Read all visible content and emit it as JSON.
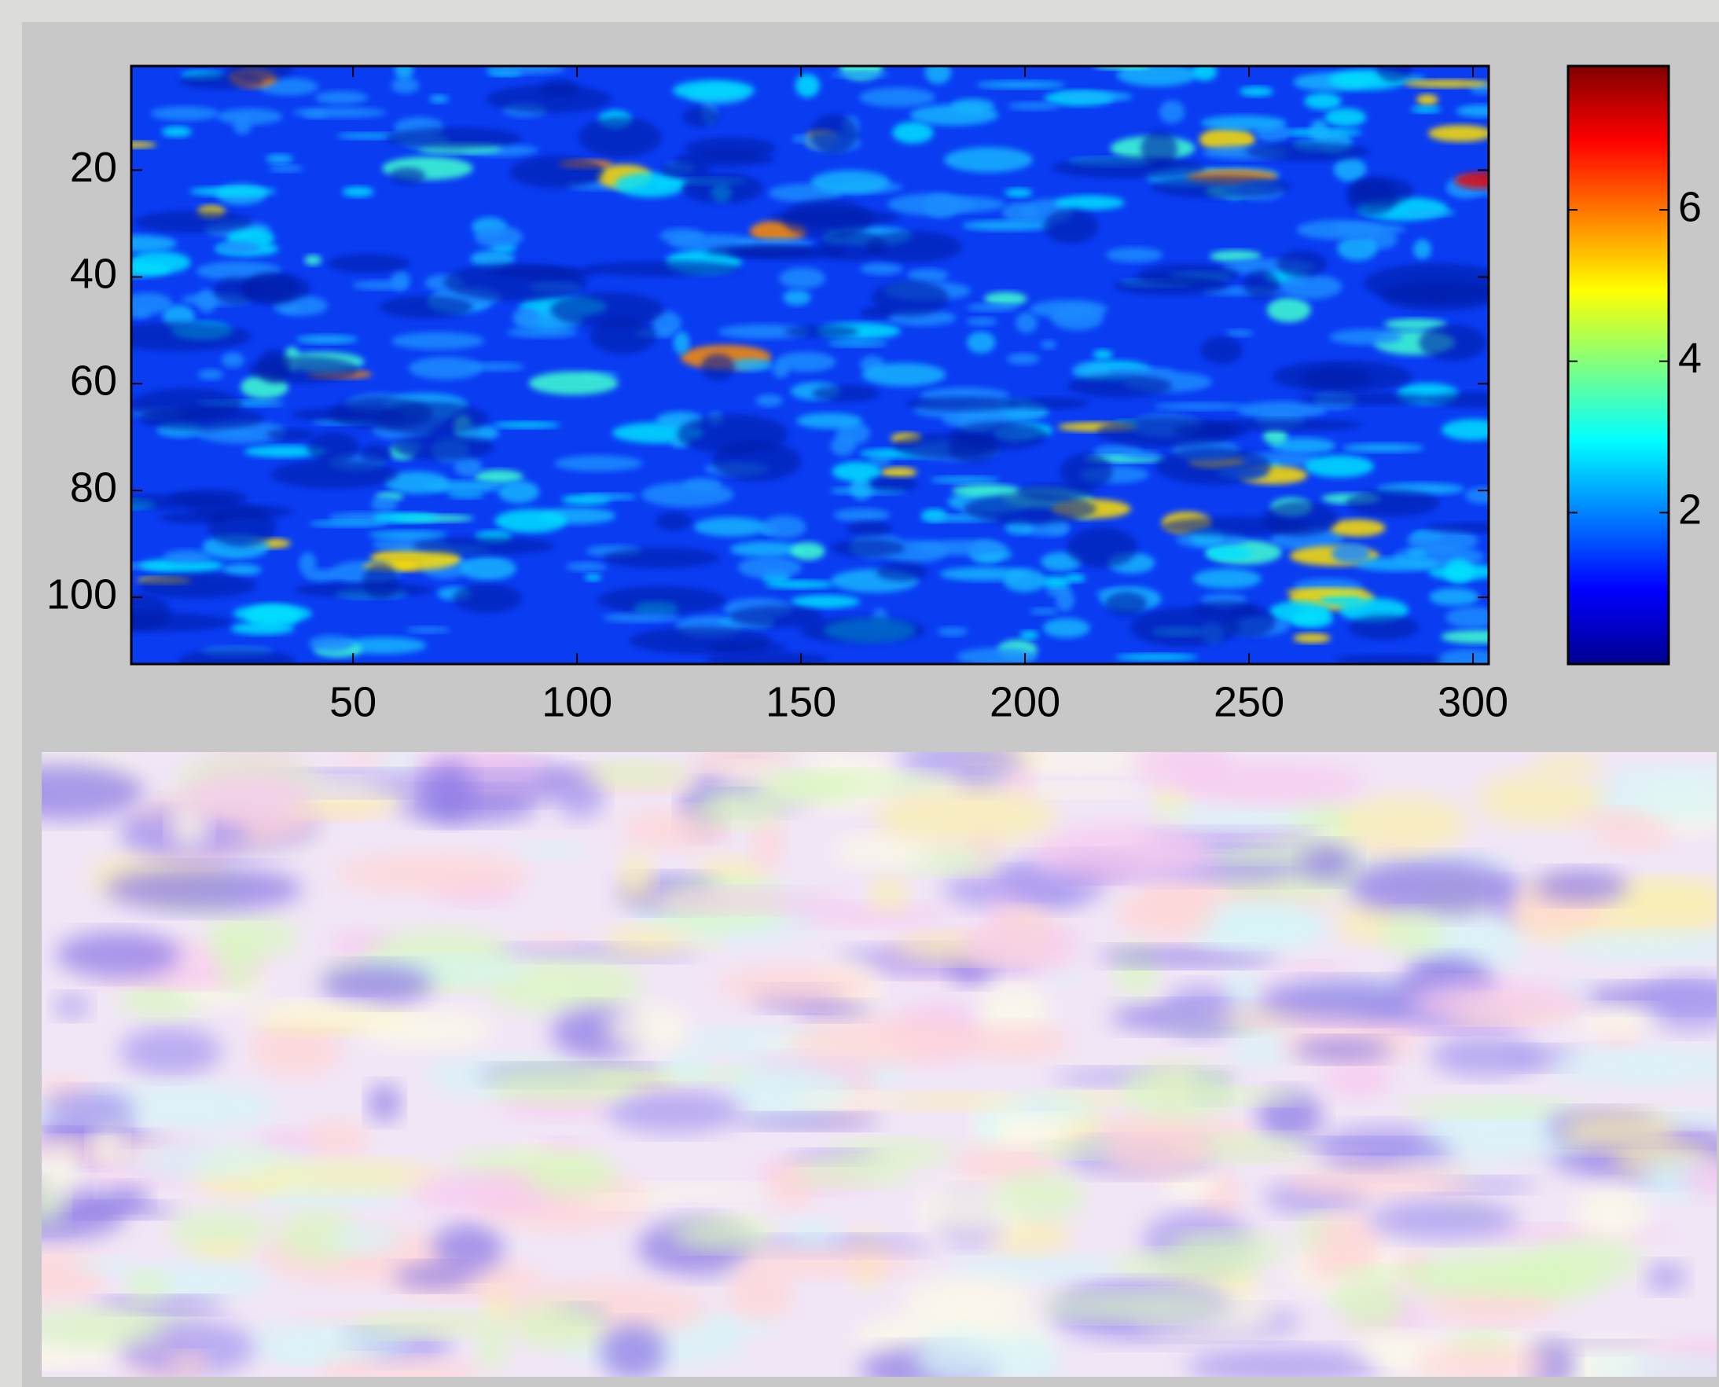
{
  "chart_data": {
    "type": "image",
    "xlim": [
      0.5,
      303.5
    ],
    "ylim": [
      0.5,
      112.5
    ],
    "y_reversed": true,
    "xticks": [
      50,
      100,
      150,
      200,
      250,
      300
    ],
    "yticks": [
      20,
      40,
      60,
      80,
      100
    ],
    "colorbar": {
      "lim": [
        0,
        7.9
      ],
      "ticks": [
        2,
        4,
        6
      ]
    }
  }
}
